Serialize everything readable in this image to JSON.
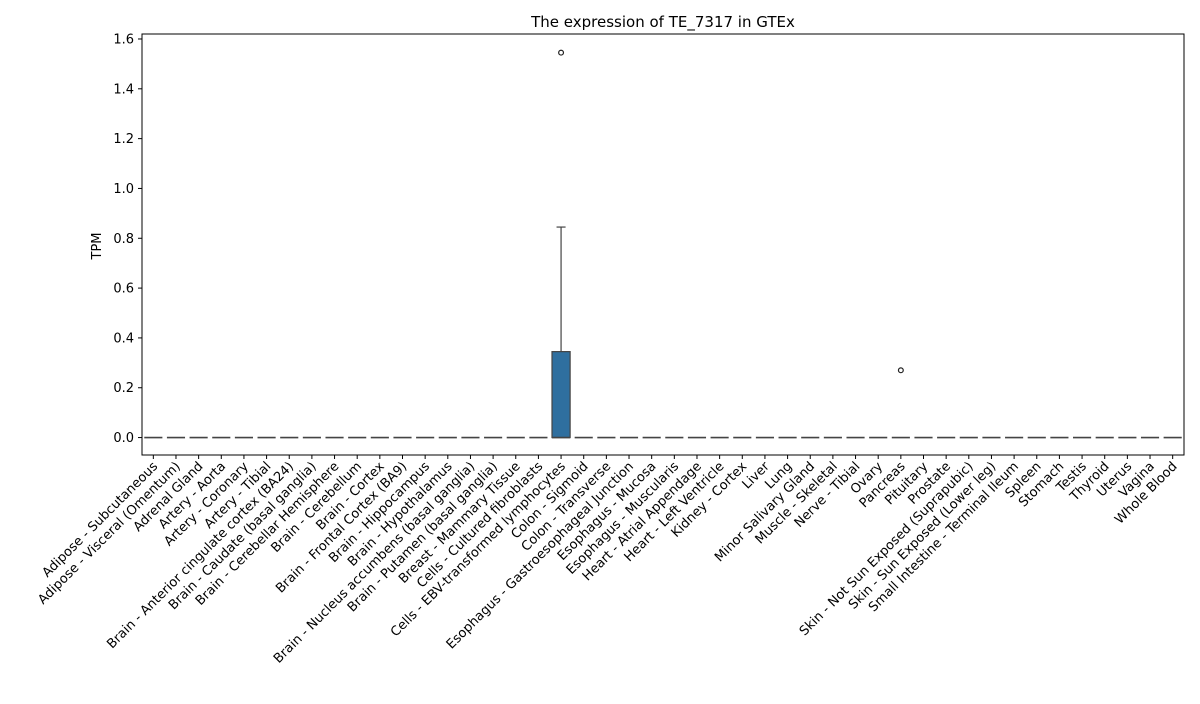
{
  "chart_data": {
    "type": "box",
    "title": "The expression of TE_7317 in GTEx",
    "xlabel": "",
    "ylabel": "TPM",
    "ylim": [
      -0.07,
      1.62
    ],
    "yticks": [
      "0.0",
      "0.2",
      "0.4",
      "0.6",
      "0.8",
      "1.0",
      "1.2",
      "1.4",
      "1.6"
    ],
    "grid": false,
    "box_color": "#2f6f9f",
    "categories": [
      "Adipose - Subcutaneous",
      "Adipose - Visceral (Omentum)",
      "Adrenal Gland",
      "Artery - Aorta",
      "Artery - Coronary",
      "Artery - Tibial",
      "Brain - Anterior cingulate cortex (BA24)",
      "Brain - Caudate (basal ganglia)",
      "Brain - Cerebellar Hemisphere",
      "Brain - Cerebellum",
      "Brain - Cortex",
      "Brain - Frontal Cortex (BA9)",
      "Brain - Hippocampus",
      "Brain - Hypothalamus",
      "Brain - Nucleus accumbens (basal ganglia)",
      "Brain - Putamen (basal ganglia)",
      "Breast - Mammary Tissue",
      "Cells - Cultured fibroblasts",
      "Cells - EBV-transformed lymphocytes",
      "Colon - Sigmoid",
      "Colon - Transverse",
      "Esophagus - Gastroesophageal Junction",
      "Esophagus - Mucosa",
      "Esophagus - Muscularis",
      "Heart - Atrial Appendage",
      "Heart - Left Ventricle",
      "Kidney - Cortex",
      "Liver",
      "Lung",
      "Minor Salivary Gland",
      "Muscle - Skeletal",
      "Nerve - Tibial",
      "Ovary",
      "Pancreas",
      "Pituitary",
      "Prostate",
      "Skin - Not Sun Exposed (Suprapubic)",
      "Skin - Sun Exposed (Lower leg)",
      "Small Intestine - Terminal Ileum",
      "Spleen",
      "Stomach",
      "Testis",
      "Thyroid",
      "Uterus",
      "Vagina",
      "Whole Blood"
    ],
    "boxes": [
      {
        "category": "Adipose - Subcutaneous",
        "min": 0,
        "q1": 0,
        "median": 0,
        "q3": 0,
        "max": 0,
        "outliers": []
      },
      {
        "category": "Adipose - Visceral (Omentum)",
        "min": 0,
        "q1": 0,
        "median": 0,
        "q3": 0,
        "max": 0,
        "outliers": []
      },
      {
        "category": "Adrenal Gland",
        "min": 0,
        "q1": 0,
        "median": 0,
        "q3": 0,
        "max": 0,
        "outliers": []
      },
      {
        "category": "Artery - Aorta",
        "min": 0,
        "q1": 0,
        "median": 0,
        "q3": 0,
        "max": 0,
        "outliers": []
      },
      {
        "category": "Artery - Coronary",
        "min": 0,
        "q1": 0,
        "median": 0,
        "q3": 0,
        "max": 0,
        "outliers": []
      },
      {
        "category": "Artery - Tibial",
        "min": 0,
        "q1": 0,
        "median": 0,
        "q3": 0,
        "max": 0,
        "outliers": []
      },
      {
        "category": "Brain - Anterior cingulate cortex (BA24)",
        "min": 0,
        "q1": 0,
        "median": 0,
        "q3": 0,
        "max": 0,
        "outliers": []
      },
      {
        "category": "Brain - Caudate (basal ganglia)",
        "min": 0,
        "q1": 0,
        "median": 0,
        "q3": 0,
        "max": 0,
        "outliers": []
      },
      {
        "category": "Brain - Cerebellar Hemisphere",
        "min": 0,
        "q1": 0,
        "median": 0,
        "q3": 0,
        "max": 0,
        "outliers": []
      },
      {
        "category": "Brain - Cerebellum",
        "min": 0,
        "q1": 0,
        "median": 0,
        "q3": 0,
        "max": 0,
        "outliers": []
      },
      {
        "category": "Brain - Cortex",
        "min": 0,
        "q1": 0,
        "median": 0,
        "q3": 0,
        "max": 0,
        "outliers": []
      },
      {
        "category": "Brain - Frontal Cortex (BA9)",
        "min": 0,
        "q1": 0,
        "median": 0,
        "q3": 0,
        "max": 0,
        "outliers": []
      },
      {
        "category": "Brain - Hippocampus",
        "min": 0,
        "q1": 0,
        "median": 0,
        "q3": 0,
        "max": 0,
        "outliers": []
      },
      {
        "category": "Brain - Hypothalamus",
        "min": 0,
        "q1": 0,
        "median": 0,
        "q3": 0,
        "max": 0,
        "outliers": []
      },
      {
        "category": "Brain - Nucleus accumbens (basal ganglia)",
        "min": 0,
        "q1": 0,
        "median": 0,
        "q3": 0,
        "max": 0,
        "outliers": []
      },
      {
        "category": "Brain - Putamen (basal ganglia)",
        "min": 0,
        "q1": 0,
        "median": 0,
        "q3": 0,
        "max": 0,
        "outliers": []
      },
      {
        "category": "Breast - Mammary Tissue",
        "min": 0,
        "q1": 0,
        "median": 0,
        "q3": 0,
        "max": 0,
        "outliers": []
      },
      {
        "category": "Cells - Cultured fibroblasts",
        "min": 0,
        "q1": 0,
        "median": 0,
        "q3": 0,
        "max": 0,
        "outliers": []
      },
      {
        "category": "Cells - EBV-transformed lymphocytes",
        "min": 0,
        "q1": 0,
        "median": 0,
        "q3": 0.345,
        "max": 0.845,
        "outliers": [
          1.545
        ]
      },
      {
        "category": "Colon - Sigmoid",
        "min": 0,
        "q1": 0,
        "median": 0,
        "q3": 0,
        "max": 0,
        "outliers": []
      },
      {
        "category": "Colon - Transverse",
        "min": 0,
        "q1": 0,
        "median": 0,
        "q3": 0,
        "max": 0,
        "outliers": []
      },
      {
        "category": "Esophagus - Gastroesophageal Junction",
        "min": 0,
        "q1": 0,
        "median": 0,
        "q3": 0,
        "max": 0,
        "outliers": []
      },
      {
        "category": "Esophagus - Mucosa",
        "min": 0,
        "q1": 0,
        "median": 0,
        "q3": 0,
        "max": 0,
        "outliers": []
      },
      {
        "category": "Esophagus - Muscularis",
        "min": 0,
        "q1": 0,
        "median": 0,
        "q3": 0,
        "max": 0,
        "outliers": []
      },
      {
        "category": "Heart - Atrial Appendage",
        "min": 0,
        "q1": 0,
        "median": 0,
        "q3": 0,
        "max": 0,
        "outliers": []
      },
      {
        "category": "Heart - Left Ventricle",
        "min": 0,
        "q1": 0,
        "median": 0,
        "q3": 0,
        "max": 0,
        "outliers": []
      },
      {
        "category": "Kidney - Cortex",
        "min": 0,
        "q1": 0,
        "median": 0,
        "q3": 0,
        "max": 0,
        "outliers": []
      },
      {
        "category": "Liver",
        "min": 0,
        "q1": 0,
        "median": 0,
        "q3": 0,
        "max": 0,
        "outliers": []
      },
      {
        "category": "Lung",
        "min": 0,
        "q1": 0,
        "median": 0,
        "q3": 0,
        "max": 0,
        "outliers": []
      },
      {
        "category": "Minor Salivary Gland",
        "min": 0,
        "q1": 0,
        "median": 0,
        "q3": 0,
        "max": 0,
        "outliers": []
      },
      {
        "category": "Muscle - Skeletal",
        "min": 0,
        "q1": 0,
        "median": 0,
        "q3": 0,
        "max": 0,
        "outliers": []
      },
      {
        "category": "Nerve - Tibial",
        "min": 0,
        "q1": 0,
        "median": 0,
        "q3": 0,
        "max": 0,
        "outliers": []
      },
      {
        "category": "Ovary",
        "min": 0,
        "q1": 0,
        "median": 0,
        "q3": 0,
        "max": 0,
        "outliers": []
      },
      {
        "category": "Pancreas",
        "min": 0,
        "q1": 0,
        "median": 0,
        "q3": 0,
        "max": 0,
        "outliers": [
          0.27
        ]
      },
      {
        "category": "Pituitary",
        "min": 0,
        "q1": 0,
        "median": 0,
        "q3": 0,
        "max": 0,
        "outliers": []
      },
      {
        "category": "Prostate",
        "min": 0,
        "q1": 0,
        "median": 0,
        "q3": 0,
        "max": 0,
        "outliers": []
      },
      {
        "category": "Skin - Not Sun Exposed (Suprapubic)",
        "min": 0,
        "q1": 0,
        "median": 0,
        "q3": 0,
        "max": 0,
        "outliers": []
      },
      {
        "category": "Skin - Sun Exposed (Lower leg)",
        "min": 0,
        "q1": 0,
        "median": 0,
        "q3": 0,
        "max": 0,
        "outliers": []
      },
      {
        "category": "Small Intestine - Terminal Ileum",
        "min": 0,
        "q1": 0,
        "median": 0,
        "q3": 0,
        "max": 0,
        "outliers": []
      },
      {
        "category": "Spleen",
        "min": 0,
        "q1": 0,
        "median": 0,
        "q3": 0,
        "max": 0,
        "outliers": []
      },
      {
        "category": "Stomach",
        "min": 0,
        "q1": 0,
        "median": 0,
        "q3": 0,
        "max": 0,
        "outliers": []
      },
      {
        "category": "Testis",
        "min": 0,
        "q1": 0,
        "median": 0,
        "q3": 0,
        "max": 0,
        "outliers": []
      },
      {
        "category": "Thyroid",
        "min": 0,
        "q1": 0,
        "median": 0,
        "q3": 0,
        "max": 0,
        "outliers": []
      },
      {
        "category": "Uterus",
        "min": 0,
        "q1": 0,
        "median": 0,
        "q3": 0,
        "max": 0,
        "outliers": []
      },
      {
        "category": "Vagina",
        "min": 0,
        "q1": 0,
        "median": 0,
        "q3": 0,
        "max": 0,
        "outliers": []
      },
      {
        "category": "Whole Blood",
        "min": 0,
        "q1": 0,
        "median": 0,
        "q3": 0,
        "max": 0,
        "outliers": []
      }
    ]
  }
}
